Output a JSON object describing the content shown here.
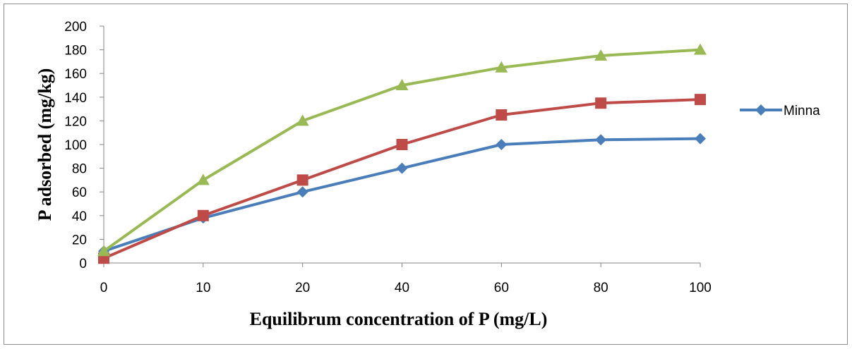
{
  "chart_data": {
    "type": "line",
    "categories": [
      "0",
      "10",
      "20",
      "40",
      "60",
      "80",
      "100"
    ],
    "series": [
      {
        "name": "Minna",
        "color": "#4a7ebb",
        "marker": "diamond",
        "values": [
          10,
          38,
          60,
          80,
          100,
          104,
          105
        ]
      },
      {
        "name": "",
        "color": "#be4b48",
        "marker": "square",
        "values": [
          4,
          40,
          70,
          100,
          125,
          135,
          138
        ]
      },
      {
        "name": "",
        "color": "#98b954",
        "marker": "triangle",
        "values": [
          10,
          70,
          120,
          150,
          165,
          175,
          180
        ]
      }
    ],
    "title": "",
    "xlabel": "Equilibrum concentration of P (mg/L)",
    "ylabel": "P adsorbed (mg/kg)",
    "ylim": [
      0,
      200
    ],
    "yticks": [
      "0",
      "20",
      "40",
      "60",
      "80",
      "100",
      "120",
      "140",
      "160",
      "180",
      "200"
    ],
    "grid": false,
    "legend": {
      "position": "right",
      "entries": [
        "Minna"
      ]
    }
  }
}
